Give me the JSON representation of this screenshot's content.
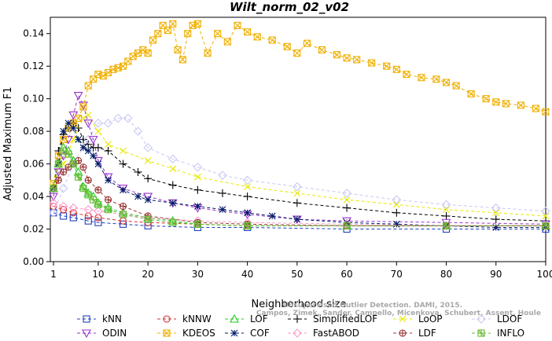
{
  "chart_data": {
    "type": "line",
    "title": "Wilt_norm_02_v02",
    "xlabel": "Neighborhood size",
    "ylabel": "Adjusted Maximum F1",
    "xlim": [
      1,
      100
    ],
    "ylim": [
      0,
      0.15
    ],
    "xticks": [
      1,
      10,
      20,
      30,
      40,
      50,
      60,
      70,
      80,
      90,
      100
    ],
    "yticks": [
      "0.00",
      "0.02",
      "0.04",
      "0.06",
      "0.08",
      "0.10",
      "0.12",
      "0.14"
    ],
    "grid": false,
    "legend_position": "bottom",
    "watermark": [
      "Unsupervised Outlier Detection. DAMI, 2015.",
      "Campos, Zimek, Sander, Campello, Micenkova, Schubert, Assent, Houle"
    ],
    "series": [
      {
        "name": "kNN",
        "color": "#1f3fbf",
        "marker": "square",
        "x": [
          1,
          3,
          5,
          8,
          10,
          15,
          20,
          30,
          40,
          60,
          80,
          100
        ],
        "values": [
          0.03,
          0.028,
          0.027,
          0.025,
          0.024,
          0.023,
          0.022,
          0.021,
          0.021,
          0.02,
          0.02,
          0.02
        ]
      },
      {
        "name": "kNNW",
        "color": "#d93030",
        "marker": "circle",
        "x": [
          1,
          3,
          5,
          8,
          10,
          15,
          20,
          30,
          40,
          60,
          80,
          100
        ],
        "values": [
          0.034,
          0.032,
          0.03,
          0.028,
          0.027,
          0.025,
          0.024,
          0.023,
          0.022,
          0.022,
          0.022,
          0.022
        ]
      },
      {
        "name": "LOF",
        "color": "#22cc22",
        "marker": "triangle-up",
        "x": [
          1,
          2,
          3,
          4,
          5,
          6,
          7,
          8,
          9,
          10,
          12,
          15,
          20,
          25,
          30,
          40,
          60,
          80,
          100
        ],
        "values": [
          0.045,
          0.06,
          0.07,
          0.068,
          0.062,
          0.055,
          0.046,
          0.042,
          0.04,
          0.036,
          0.033,
          0.03,
          0.027,
          0.025,
          0.023,
          0.022,
          0.022,
          0.022,
          0.022
        ]
      },
      {
        "name": "SimplifiedLOF",
        "color": "#000000",
        "marker": "plus",
        "x": [
          1,
          2,
          3,
          4,
          5,
          6,
          7,
          8,
          9,
          10,
          12,
          15,
          18,
          20,
          25,
          30,
          35,
          40,
          50,
          60,
          70,
          80,
          90,
          100
        ],
        "values": [
          0.045,
          0.068,
          0.078,
          0.082,
          0.085,
          0.082,
          0.075,
          0.072,
          0.07,
          0.07,
          0.068,
          0.06,
          0.055,
          0.051,
          0.047,
          0.044,
          0.042,
          0.04,
          0.036,
          0.033,
          0.03,
          0.028,
          0.026,
          0.025
        ]
      },
      {
        "name": "LoOP",
        "color": "#e8e800",
        "marker": "cross",
        "x": [
          1,
          3,
          5,
          7,
          8,
          10,
          12,
          15,
          20,
          25,
          30,
          40,
          50,
          60,
          70,
          80,
          90,
          100
        ],
        "values": [
          0.048,
          0.06,
          0.075,
          0.088,
          0.09,
          0.08,
          0.072,
          0.068,
          0.062,
          0.057,
          0.052,
          0.046,
          0.042,
          0.038,
          0.035,
          0.032,
          0.03,
          0.028
        ]
      },
      {
        "name": "LDOF",
        "color": "#c8c8f5",
        "marker": "diamond",
        "x": [
          1,
          3,
          5,
          8,
          10,
          12,
          14,
          16,
          18,
          20,
          25,
          30,
          35,
          40,
          50,
          60,
          70,
          80,
          90,
          100
        ],
        "values": [
          0.03,
          0.045,
          0.06,
          0.075,
          0.085,
          0.085,
          0.088,
          0.088,
          0.08,
          0.07,
          0.063,
          0.058,
          0.053,
          0.05,
          0.046,
          0.042,
          0.038,
          0.035,
          0.033,
          0.031
        ]
      },
      {
        "name": "ODIN",
        "color": "#9933cc",
        "marker": "triangle-down",
        "x": [
          1,
          2,
          3,
          4,
          5,
          6,
          7,
          8,
          9,
          10,
          12,
          15,
          20,
          25,
          30,
          40,
          50,
          60,
          80,
          100
        ],
        "values": [
          0.04,
          0.055,
          0.065,
          0.075,
          0.09,
          0.102,
          0.096,
          0.085,
          0.075,
          0.062,
          0.052,
          0.045,
          0.04,
          0.036,
          0.033,
          0.029,
          0.026,
          0.025,
          0.024,
          0.023
        ]
      },
      {
        "name": "KDEOS",
        "color": "#f0b000",
        "marker": "boxed-x",
        "x": [
          1,
          2,
          3,
          4,
          5,
          6,
          7,
          8,
          9,
          10,
          11,
          12,
          13,
          14,
          15,
          16,
          17,
          18,
          19,
          20,
          21,
          22,
          23,
          24,
          25,
          26,
          27,
          28,
          29,
          30,
          32,
          34,
          36,
          38,
          40,
          42,
          45,
          48,
          50,
          52,
          55,
          58,
          60,
          62,
          65,
          68,
          70,
          72,
          75,
          78,
          80,
          82,
          85,
          88,
          90,
          92,
          95,
          98,
          100
        ],
        "values": [
          0.048,
          0.065,
          0.075,
          0.082,
          0.085,
          0.088,
          0.095,
          0.108,
          0.112,
          0.115,
          0.114,
          0.116,
          0.118,
          0.119,
          0.12,
          0.123,
          0.126,
          0.128,
          0.13,
          0.128,
          0.136,
          0.14,
          0.145,
          0.142,
          0.146,
          0.13,
          0.124,
          0.14,
          0.145,
          0.146,
          0.128,
          0.14,
          0.135,
          0.145,
          0.141,
          0.138,
          0.136,
          0.132,
          0.128,
          0.134,
          0.13,
          0.127,
          0.125,
          0.124,
          0.122,
          0.12,
          0.118,
          0.115,
          0.113,
          0.112,
          0.11,
          0.108,
          0.103,
          0.1,
          0.098,
          0.097,
          0.096,
          0.094,
          0.092
        ]
      },
      {
        "name": "COF",
        "color": "#001a66",
        "marker": "asterisk",
        "x": [
          1,
          2,
          3,
          4,
          5,
          6,
          7,
          8,
          9,
          10,
          12,
          15,
          18,
          20,
          25,
          30,
          35,
          40,
          45,
          50,
          60,
          70,
          80,
          90,
          100
        ],
        "values": [
          0.045,
          0.06,
          0.08,
          0.085,
          0.082,
          0.075,
          0.07,
          0.068,
          0.065,
          0.06,
          0.05,
          0.044,
          0.04,
          0.038,
          0.036,
          0.034,
          0.032,
          0.03,
          0.028,
          0.026,
          0.024,
          0.023,
          0.022,
          0.021,
          0.021
        ]
      },
      {
        "name": "FastABOD",
        "color": "#ff99cc",
        "marker": "diamond",
        "x": [
          1,
          3,
          5,
          8,
          10,
          15,
          20,
          30,
          40,
          60,
          80,
          100
        ],
        "values": [
          0.036,
          0.034,
          0.033,
          0.032,
          0.031,
          0.029,
          0.027,
          0.025,
          0.024,
          0.023,
          0.022,
          0.022
        ]
      },
      {
        "name": "LDF",
        "color": "#993333",
        "marker": "circle-plus",
        "x": [
          1,
          2,
          3,
          4,
          5,
          6,
          7,
          8,
          10,
          12,
          15,
          20,
          30,
          40,
          60,
          80,
          100
        ],
        "values": [
          0.045,
          0.05,
          0.055,
          0.058,
          0.06,
          0.062,
          0.058,
          0.05,
          0.044,
          0.038,
          0.034,
          0.028,
          0.024,
          0.023,
          0.022,
          0.022,
          0.022
        ]
      },
      {
        "name": "INFLO",
        "color": "#66bb33",
        "marker": "boxed-star",
        "x": [
          1,
          2,
          3,
          4,
          5,
          6,
          7,
          8,
          9,
          10,
          12,
          15,
          20,
          25,
          30,
          40,
          60,
          80,
          100
        ],
        "values": [
          0.045,
          0.06,
          0.068,
          0.066,
          0.06,
          0.052,
          0.045,
          0.041,
          0.038,
          0.035,
          0.032,
          0.029,
          0.026,
          0.024,
          0.023,
          0.022,
          0.022,
          0.022,
          0.022
        ]
      }
    ]
  }
}
